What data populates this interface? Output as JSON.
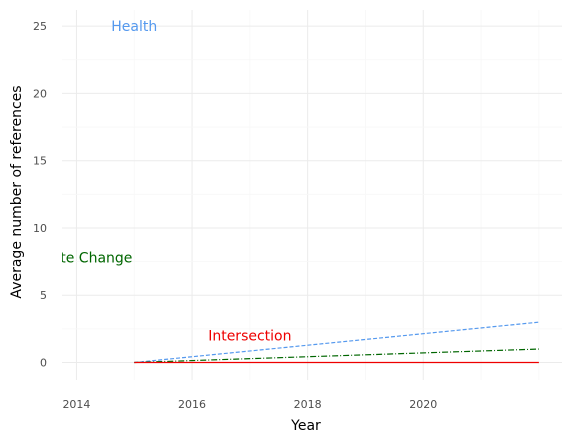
{
  "chart_data": {
    "type": "line",
    "title": "",
    "xlabel": "Year",
    "ylabel": "Average number of references",
    "xlim": [
      2013.75,
      2022.4
    ],
    "ylim": [
      -1.3,
      26.2
    ],
    "x_ticks": [
      2014,
      2016,
      2018,
      2020
    ],
    "x_tick_labels": [
      "2014",
      "2016",
      "2018",
      "2020"
    ],
    "y_ticks": [
      0,
      5,
      10,
      15,
      20,
      25
    ],
    "y_tick_labels": [
      "0",
      "5",
      "10",
      "15",
      "20",
      "25"
    ],
    "grid": true,
    "legend": "none",
    "series": [
      {
        "name": "Health",
        "x": [
          2015,
          2022
        ],
        "values": [
          0,
          3.0
        ],
        "color": "#5599ee",
        "dash": "dashed"
      },
      {
        "name": "Climate Change",
        "x": [
          2015,
          2022
        ],
        "values": [
          0,
          1.0
        ],
        "color": "#006600",
        "dash": "dashdot"
      },
      {
        "name": "Intersection",
        "x": [
          2015,
          2022
        ],
        "values": [
          0,
          0
        ],
        "color": "#ee0000",
        "dash": "solid"
      }
    ],
    "annotations": [
      {
        "text": "Health",
        "x": 2015.0,
        "y": 25.0,
        "color": "#5599ee"
      },
      {
        "text": "Climate Change",
        "x": 2014.0,
        "y": 7.8,
        "color": "#006600"
      },
      {
        "text": "Intersection",
        "x": 2017.0,
        "y": 2.0,
        "color": "#ee0000"
      }
    ]
  }
}
